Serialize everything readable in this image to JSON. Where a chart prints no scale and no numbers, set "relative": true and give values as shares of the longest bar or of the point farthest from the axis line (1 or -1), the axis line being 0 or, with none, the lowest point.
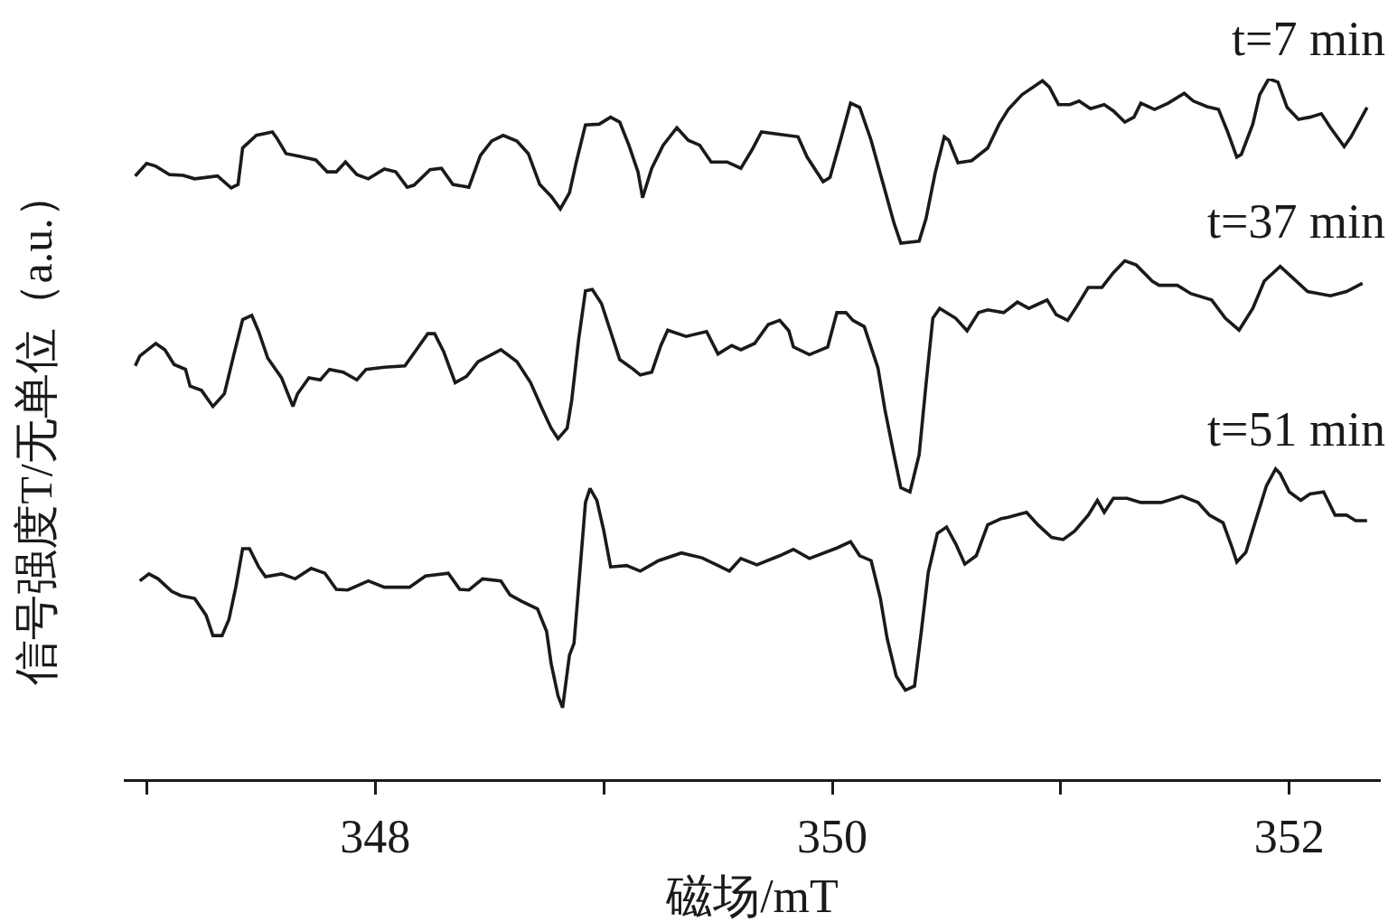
{
  "chart_data": {
    "type": "line",
    "relative": true,
    "xlabel": "磁场/mT",
    "ylabel": "信号强度T/无单位（a.u.）",
    "xlim": [
      346.9,
      352.4
    ],
    "xticks": [
      {
        "value": 347,
        "label": null
      },
      348,
      {
        "value": 349,
        "label": null
      },
      350,
      {
        "value": 351,
        "label": null
      },
      352
    ],
    "line_style": "solid",
    "series": [
      {
        "name": "t=7 min",
        "color": "#1a1a1a",
        "x": [
          346.95,
          347.0,
          347.04,
          347.1,
          347.16,
          347.21,
          347.31,
          347.37,
          347.4,
          347.42,
          347.48,
          347.55,
          347.57,
          347.61,
          347.67,
          347.74,
          347.79,
          347.83,
          347.87,
          347.92,
          347.97,
          348.04,
          348.09,
          348.14,
          348.17,
          348.24,
          348.29,
          348.34,
          348.41,
          348.46,
          348.51,
          348.56,
          348.62,
          348.67,
          348.72,
          348.77,
          348.81,
          348.85,
          348.88,
          348.92,
          348.98,
          349.03,
          349.07,
          349.11,
          349.15,
          349.17,
          349.21,
          349.26,
          349.32,
          349.37,
          349.42,
          349.47,
          349.54,
          349.6,
          349.65,
          349.69,
          349.85,
          349.89,
          349.96,
          349.99,
          350.04,
          350.08,
          350.12,
          350.17,
          350.22,
          350.27,
          350.3,
          350.38,
          350.41,
          350.45,
          350.49,
          350.51,
          350.55,
          350.61,
          350.68,
          350.73,
          350.77,
          350.83,
          350.92,
          350.95,
          350.99,
          351.04,
          351.08,
          351.13,
          351.19,
          351.23,
          351.28,
          351.32,
          351.35,
          351.41,
          351.47,
          351.54,
          351.58,
          351.64,
          351.69,
          351.73,
          351.77,
          351.79,
          351.84,
          351.87,
          351.91,
          351.95,
          351.99,
          352.04,
          352.09,
          352.14,
          352.18,
          352.24,
          352.27,
          352.34
        ],
        "values": [
          0.861,
          0.879,
          0.875,
          0.863,
          0.862,
          0.857,
          0.861,
          0.844,
          0.849,
          0.901,
          0.919,
          0.924,
          0.915,
          0.893,
          0.889,
          0.884,
          0.867,
          0.867,
          0.881,
          0.863,
          0.857,
          0.871,
          0.867,
          0.845,
          0.848,
          0.87,
          0.872,
          0.849,
          0.845,
          0.89,
          0.911,
          0.919,
          0.911,
          0.893,
          0.849,
          0.832,
          0.814,
          0.837,
          0.881,
          0.934,
          0.935,
          0.945,
          0.938,
          0.905,
          0.867,
          0.83,
          0.872,
          0.905,
          0.93,
          0.912,
          0.905,
          0.881,
          0.881,
          0.872,
          0.899,
          0.924,
          0.917,
          0.888,
          0.853,
          0.859,
          0.917,
          0.965,
          0.959,
          0.912,
          0.853,
          0.794,
          0.765,
          0.768,
          0.8,
          0.865,
          0.917,
          0.912,
          0.88,
          0.883,
          0.901,
          0.935,
          0.956,
          0.977,
          0.997,
          0.988,
          0.963,
          0.963,
          0.968,
          0.957,
          0.963,
          0.954,
          0.938,
          0.945,
          0.965,
          0.956,
          0.965,
          0.979,
          0.968,
          0.96,
          0.956,
          0.924,
          0.888,
          0.892,
          0.935,
          0.977,
          1.0,
          0.995,
          0.959,
          0.942,
          0.945,
          0.95,
          0.93,
          0.903,
          0.917,
          0.959
        ]
      },
      {
        "name": "t=37 min",
        "color": "#1a1a1a",
        "x": [
          346.95,
          346.97,
          347.04,
          347.08,
          347.12,
          347.17,
          347.19,
          347.24,
          347.29,
          347.34,
          347.38,
          347.42,
          347.46,
          347.49,
          347.53,
          347.59,
          347.64,
          347.66,
          347.71,
          347.76,
          347.8,
          347.86,
          347.92,
          347.96,
          348.04,
          348.13,
          348.18,
          348.23,
          348.26,
          348.3,
          348.35,
          348.4,
          348.45,
          348.55,
          348.62,
          348.68,
          348.73,
          348.77,
          348.8,
          348.84,
          348.86,
          348.89,
          348.92,
          348.95,
          348.99,
          349.03,
          349.07,
          349.13,
          349.16,
          349.21,
          349.25,
          349.28,
          349.36,
          349.45,
          349.5,
          349.56,
          349.6,
          349.66,
          349.72,
          349.77,
          349.81,
          349.83,
          349.9,
          349.98,
          350.02,
          350.06,
          350.09,
          350.14,
          350.2,
          350.23,
          350.27,
          350.3,
          350.34,
          350.38,
          350.41,
          350.44,
          350.47,
          350.54,
          350.59,
          350.64,
          350.68,
          350.75,
          350.81,
          350.86,
          350.94,
          350.98,
          351.03,
          351.07,
          351.12,
          351.18,
          351.23,
          351.28,
          351.33,
          351.4,
          351.43,
          351.51,
          351.57,
          351.66,
          351.72,
          351.78,
          351.84,
          351.89,
          351.96,
          352.02,
          352.08,
          352.18,
          352.25,
          352.32
        ],
        "values": [
          0.59,
          0.604,
          0.622,
          0.613,
          0.592,
          0.585,
          0.561,
          0.555,
          0.532,
          0.55,
          0.604,
          0.656,
          0.662,
          0.639,
          0.601,
          0.573,
          0.532,
          0.55,
          0.573,
          0.57,
          0.585,
          0.581,
          0.57,
          0.585,
          0.588,
          0.59,
          0.613,
          0.636,
          0.636,
          0.61,
          0.566,
          0.575,
          0.596,
          0.613,
          0.596,
          0.566,
          0.529,
          0.501,
          0.486,
          0.501,
          0.541,
          0.627,
          0.697,
          0.699,
          0.679,
          0.639,
          0.599,
          0.585,
          0.577,
          0.581,
          0.619,
          0.641,
          0.632,
          0.639,
          0.607,
          0.619,
          0.613,
          0.622,
          0.649,
          0.655,
          0.64,
          0.617,
          0.606,
          0.617,
          0.666,
          0.666,
          0.655,
          0.646,
          0.587,
          0.528,
          0.463,
          0.416,
          0.41,
          0.463,
          0.563,
          0.658,
          0.672,
          0.658,
          0.64,
          0.666,
          0.67,
          0.666,
          0.681,
          0.672,
          0.684,
          0.663,
          0.655,
          0.675,
          0.702,
          0.702,
          0.723,
          0.74,
          0.734,
          0.711,
          0.705,
          0.705,
          0.693,
          0.684,
          0.658,
          0.641,
          0.672,
          0.711,
          0.732,
          0.714,
          0.696,
          0.69,
          0.696,
          0.708
        ]
      },
      {
        "name": "t=51 min",
        "color": "#1a1a1a",
        "x": [
          346.97,
          347.01,
          347.05,
          347.11,
          347.15,
          347.21,
          347.26,
          347.29,
          347.33,
          347.36,
          347.39,
          347.42,
          347.45,
          347.49,
          347.52,
          347.59,
          347.65,
          347.72,
          347.78,
          347.83,
          347.88,
          347.97,
          348.04,
          348.15,
          348.22,
          348.32,
          348.37,
          348.41,
          348.47,
          348.55,
          348.59,
          348.64,
          348.71,
          348.75,
          348.77,
          348.8,
          348.82,
          348.85,
          348.87,
          348.89,
          348.92,
          348.94,
          348.97,
          349.0,
          349.03,
          349.1,
          349.16,
          349.24,
          349.34,
          349.43,
          349.5,
          349.55,
          349.6,
          349.67,
          349.77,
          349.83,
          349.9,
          350.02,
          350.08,
          350.12,
          350.17,
          350.21,
          350.24,
          350.28,
          350.32,
          350.36,
          350.39,
          350.42,
          350.46,
          350.5,
          350.54,
          350.58,
          350.63,
          350.68,
          350.74,
          350.77,
          350.85,
          350.9,
          350.96,
          351.01,
          351.06,
          351.12,
          351.16,
          351.19,
          351.23,
          351.29,
          351.35,
          351.44,
          351.53,
          351.6,
          351.65,
          351.71,
          351.75,
          351.77,
          351.81,
          351.86,
          351.9,
          351.94,
          351.96,
          352.0,
          352.05,
          352.09,
          352.15,
          352.2,
          352.25,
          352.29,
          352.34
        ],
        "values": [
          0.283,
          0.293,
          0.286,
          0.268,
          0.262,
          0.258,
          0.234,
          0.205,
          0.205,
          0.228,
          0.274,
          0.329,
          0.329,
          0.303,
          0.289,
          0.293,
          0.286,
          0.301,
          0.294,
          0.271,
          0.27,
          0.283,
          0.274,
          0.274,
          0.29,
          0.294,
          0.271,
          0.27,
          0.286,
          0.283,
          0.263,
          0.254,
          0.243,
          0.211,
          0.165,
          0.119,
          0.102,
          0.177,
          0.194,
          0.274,
          0.395,
          0.415,
          0.398,
          0.355,
          0.303,
          0.305,
          0.297,
          0.312,
          0.323,
          0.316,
          0.305,
          0.297,
          0.315,
          0.306,
          0.319,
          0.328,
          0.315,
          0.33,
          0.339,
          0.319,
          0.312,
          0.259,
          0.201,
          0.147,
          0.127,
          0.133,
          0.212,
          0.295,
          0.351,
          0.36,
          0.336,
          0.307,
          0.319,
          0.363,
          0.372,
          0.374,
          0.381,
          0.363,
          0.345,
          0.342,
          0.354,
          0.377,
          0.398,
          0.381,
          0.401,
          0.401,
          0.395,
          0.395,
          0.404,
          0.395,
          0.377,
          0.366,
          0.33,
          0.31,
          0.324,
          0.377,
          0.419,
          0.443,
          0.436,
          0.41,
          0.398,
          0.407,
          0.41,
          0.377,
          0.377,
          0.369,
          0.369
        ]
      }
    ]
  }
}
